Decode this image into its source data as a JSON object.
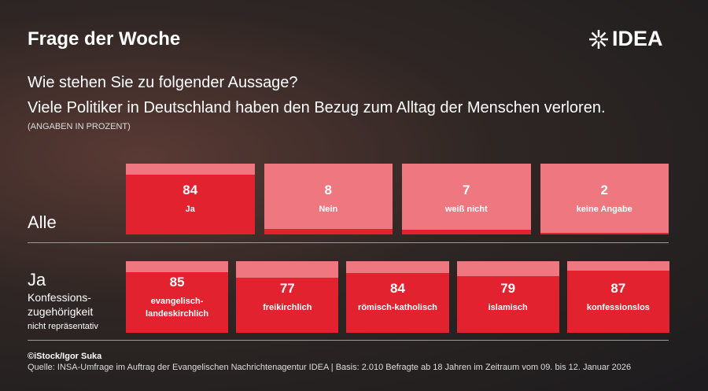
{
  "header": {
    "title": "Frage der Woche",
    "logo": "IDEA"
  },
  "question": [
    "Wie stehen Sie zu folgender Aussage?",
    "Viele Politiker in Deutschland haben den Bezug zum Alltag der Menschen verloren."
  ],
  "note": "(ANGABEN IN PROZENT)",
  "chart_data": [
    {
      "type": "bar",
      "title": "Alle",
      "categories": [
        "Ja",
        "Nein",
        "weiß nicht",
        "keine Angabe"
      ],
      "values": [
        84,
        8,
        7,
        2
      ],
      "ylim": [
        0,
        100
      ],
      "color": "#e3222f",
      "background": "#ef7880"
    },
    {
      "type": "bar",
      "title": "Ja",
      "subtitle": [
        "Konfessions-",
        "zugehörigkeit"
      ],
      "annotation": "nicht repräsentativ",
      "categories": [
        "evangelisch-\nlandeskirchlich",
        "freikirchlich",
        "römisch-katholisch",
        "islamisch",
        "konfessionslos"
      ],
      "values": [
        85,
        77,
        84,
        79,
        87
      ],
      "ylim": [
        0,
        100
      ],
      "color": "#e3222f",
      "background": "#ef7880"
    }
  ],
  "footer": {
    "credit": "©iStock/Igor Suka",
    "source": "Quelle: INSA-Umfrage im Auftrag der Evangelischen Nachrichtenagentur IDEA | Basis: 2.010 Befragte ab 18 Jahren im Zeitraum vom 09. bis 12. Januar 2026"
  }
}
